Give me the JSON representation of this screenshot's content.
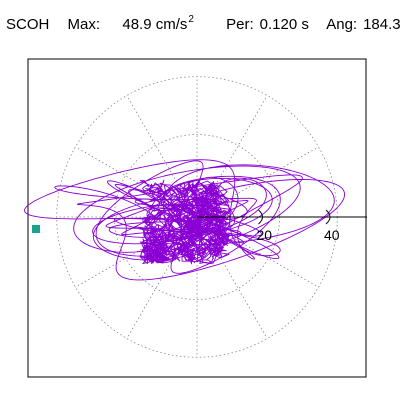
{
  "header": {
    "station": "SCOH",
    "max_label": "Max:",
    "max_value": "48.9 cm/s",
    "max_exp": "2",
    "per_label": "Per:",
    "per_value": "0.120 s",
    "ang_label": "Ang:",
    "ang_value": "184.3"
  },
  "colors": {
    "trace": "#8a00d4",
    "marker": "#1aa38a",
    "grid": "#888888",
    "frame": "#000000"
  },
  "chart_data": {
    "type": "polar-particle-motion",
    "radial_ticks": [
      {
        "value": 20,
        "label": "20"
      },
      {
        "value": 40,
        "label": "40"
      }
    ],
    "radial_max": 48.9,
    "spoke_angles_deg": [
      0,
      30,
      60,
      90,
      120,
      150,
      180,
      210,
      240,
      270,
      300,
      330
    ],
    "peak_angle_deg": 184.3,
    "peak_amplitude": 48.9,
    "grid": true
  }
}
